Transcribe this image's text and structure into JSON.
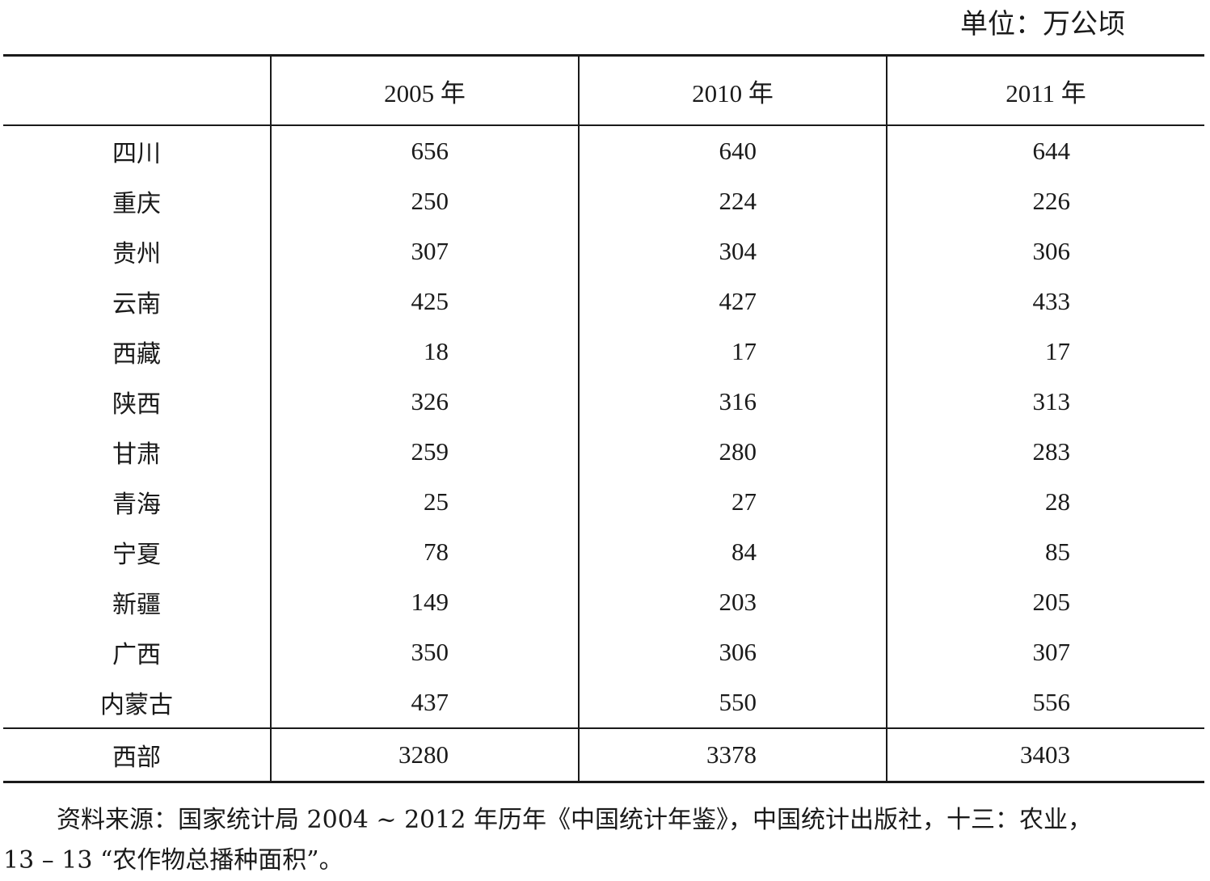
{
  "unit_label": "单位：万公顷",
  "table": {
    "headers": [
      "",
      "2005 年",
      "2010 年",
      "2011 年"
    ],
    "rows": [
      {
        "region": "四川",
        "y2005": "656",
        "y2010": "640",
        "y2011": "644"
      },
      {
        "region": "重庆",
        "y2005": "250",
        "y2010": "224",
        "y2011": "226"
      },
      {
        "region": "贵州",
        "y2005": "307",
        "y2010": "304",
        "y2011": "306"
      },
      {
        "region": "云南",
        "y2005": "425",
        "y2010": "427",
        "y2011": "433"
      },
      {
        "region": "西藏",
        "y2005": "18",
        "y2010": "17",
        "y2011": "17"
      },
      {
        "region": "陕西",
        "y2005": "326",
        "y2010": "316",
        "y2011": "313"
      },
      {
        "region": "甘肃",
        "y2005": "259",
        "y2010": "280",
        "y2011": "283"
      },
      {
        "region": "青海",
        "y2005": "25",
        "y2010": "27",
        "y2011": "28"
      },
      {
        "region": "宁夏",
        "y2005": "78",
        "y2010": "84",
        "y2011": "85"
      },
      {
        "region": "新疆",
        "y2005": "149",
        "y2010": "203",
        "y2011": "205"
      },
      {
        "region": "广西",
        "y2005": "350",
        "y2010": "306",
        "y2011": "307"
      },
      {
        "region": "内蒙古",
        "y2005": "437",
        "y2010": "550",
        "y2011": "556"
      }
    ],
    "total": {
      "region": "西部",
      "y2005": "3280",
      "y2010": "3378",
      "y2011": "3403"
    }
  },
  "source": {
    "line1": "资料来源：国家统计局 2004 ~ 2012 年历年《中国统计年鉴》，中国统计出版社，十三：农业，",
    "line2": "13 – 13 “农作物总播种面积”。"
  }
}
